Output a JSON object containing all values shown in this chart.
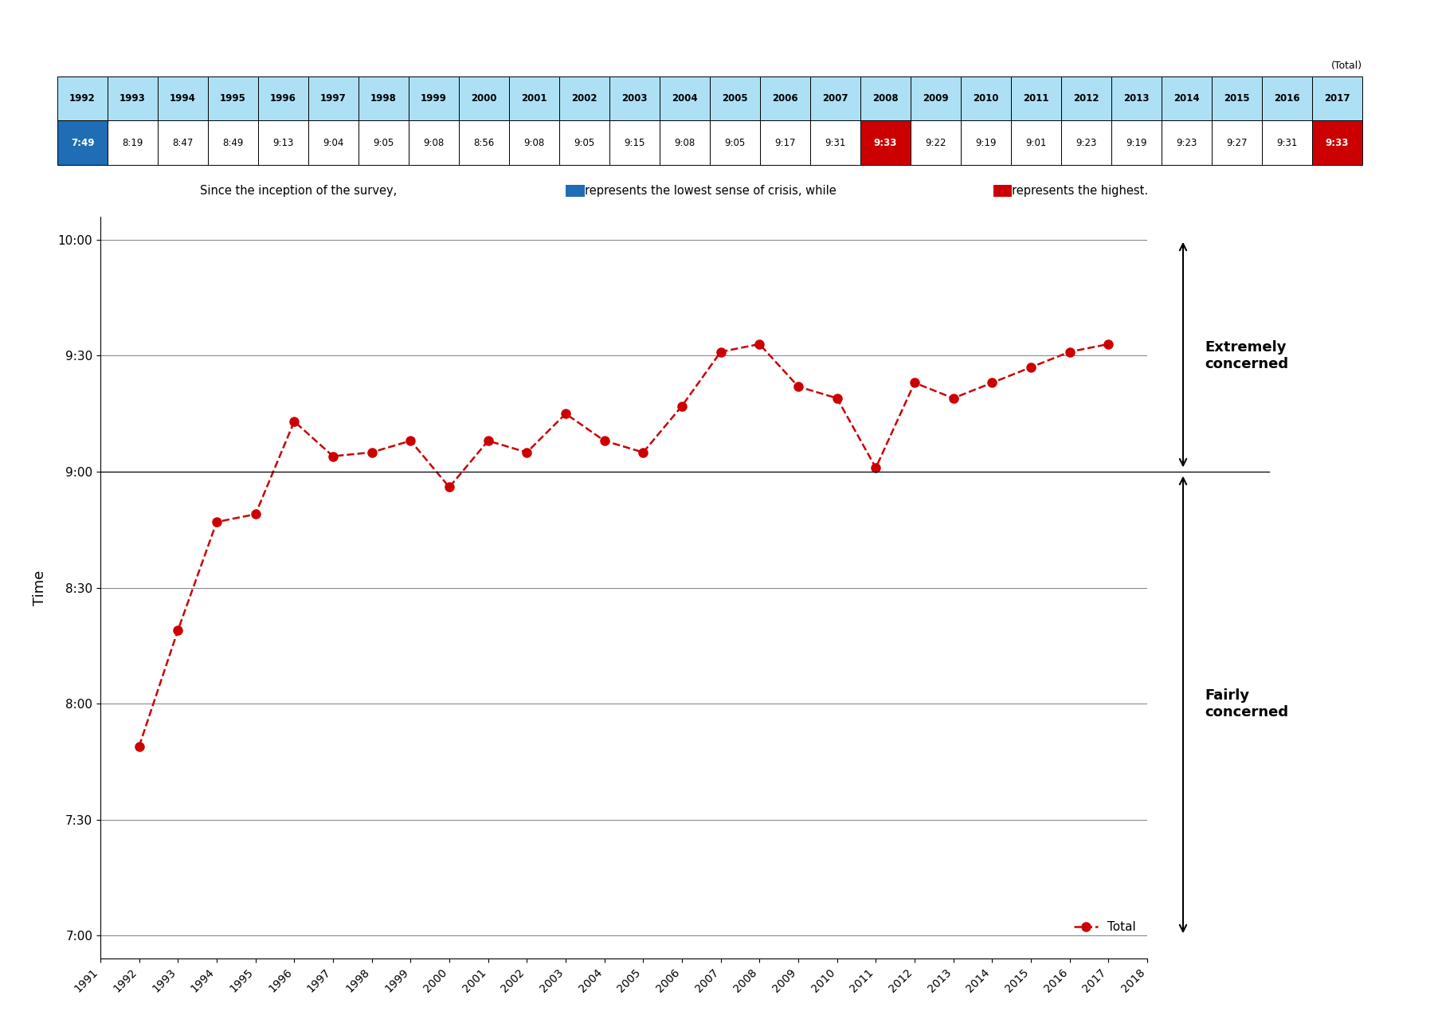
{
  "years": [
    1992,
    1993,
    1994,
    1995,
    1996,
    1997,
    1998,
    1999,
    2000,
    2001,
    2002,
    2003,
    2004,
    2005,
    2006,
    2007,
    2008,
    2009,
    2010,
    2011,
    2012,
    2013,
    2014,
    2015,
    2016,
    2017
  ],
  "times_str": [
    "7:49",
    "8:19",
    "8:47",
    "8:49",
    "9:13",
    "9:04",
    "9:05",
    "9:08",
    "8:56",
    "9:08",
    "9:05",
    "9:15",
    "9:08",
    "9:05",
    "9:17",
    "9:31",
    "9:33",
    "9:22",
    "9:19",
    "9:01",
    "9:23",
    "9:19",
    "9:23",
    "9:27",
    "9:31",
    "9:33"
  ],
  "times_min": [
    7.8167,
    8.3167,
    8.7833,
    8.8167,
    9.2167,
    9.0667,
    9.0833,
    9.1333,
    8.9333,
    9.1333,
    9.0833,
    9.25,
    9.1333,
    9.0833,
    9.2833,
    9.5167,
    9.55,
    9.3667,
    9.3167,
    9.0167,
    9.3833,
    9.3167,
    9.3833,
    9.45,
    9.5167,
    9.55
  ],
  "line_color": "#CC0000",
  "dot_color": "#CC0000",
  "table_header_bg": "#ADE0F5",
  "table_header_text": "#000000",
  "table_row_bg": "#FFFFFF",
  "min_cell_bg": "#1F6EB5",
  "min_cell_text": "#FFFFFF",
  "max_cell_bg": "#CC0000",
  "max_cell_text": "#FFFFFF",
  "min_year": 1992,
  "max_year_list": [
    2008,
    2017
  ],
  "ylabel": "Time",
  "ytick_labels": [
    "7:00",
    "7:30",
    "8:00",
    "8:30",
    "9:00",
    "9:30",
    "10:00"
  ],
  "ytick_values": [
    7.0,
    7.5,
    8.0,
    8.5,
    9.0,
    9.5,
    10.0
  ],
  "xlim": [
    1991,
    2018
  ],
  "ylim": [
    6.9,
    10.1
  ],
  "legend_label": "Total",
  "grid_color": "#808080",
  "boundary_y": 9.0,
  "extremely_top_y": 10.0,
  "fairly_bottom_y": 7.0
}
